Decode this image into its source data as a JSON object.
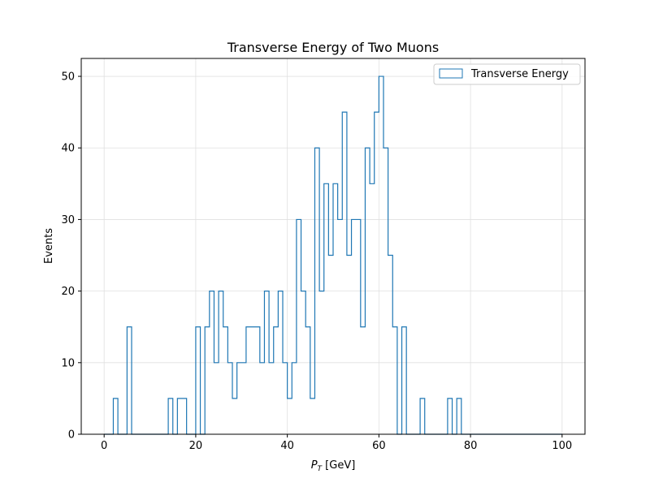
{
  "chart_data": {
    "type": "bar",
    "histogram": true,
    "title": "Transverse Energy of Two Muons",
    "xlabel_main": "P",
    "xlabel_sub": "T",
    "xlabel_unit": " [GeV]",
    "ylabel": "Events",
    "xlim": [
      -5,
      105
    ],
    "ylim": [
      0,
      52.5
    ],
    "xticks": [
      0,
      20,
      40,
      60,
      80,
      100
    ],
    "yticks": [
      0,
      10,
      20,
      30,
      40,
      50
    ],
    "grid": true,
    "legend_position": "top-right",
    "bin_width": 1,
    "series": [
      {
        "name": "Transverse Energy",
        "color": "#1f77b4",
        "bin_edges_start": 0,
        "values": [
          0,
          0,
          5,
          0,
          0,
          15,
          0,
          0,
          0,
          0,
          0,
          0,
          0,
          0,
          5,
          0,
          5,
          5,
          0,
          0,
          15,
          0,
          15,
          20,
          10,
          20,
          15,
          10,
          5,
          10,
          10,
          15,
          15,
          15,
          10,
          20,
          10,
          15,
          20,
          10,
          5,
          10,
          30,
          20,
          15,
          5,
          40,
          20,
          35,
          25,
          35,
          30,
          45,
          25,
          30,
          30,
          15,
          40,
          35,
          45,
          50,
          40,
          25,
          15,
          0,
          15,
          0,
          0,
          0,
          5,
          0,
          0,
          0,
          0,
          0,
          5,
          0,
          5,
          0,
          0,
          0,
          0,
          0,
          0,
          0,
          0,
          0,
          0,
          0,
          0,
          0,
          0,
          0,
          0,
          0,
          0,
          0,
          0,
          0,
          0
        ]
      }
    ]
  }
}
